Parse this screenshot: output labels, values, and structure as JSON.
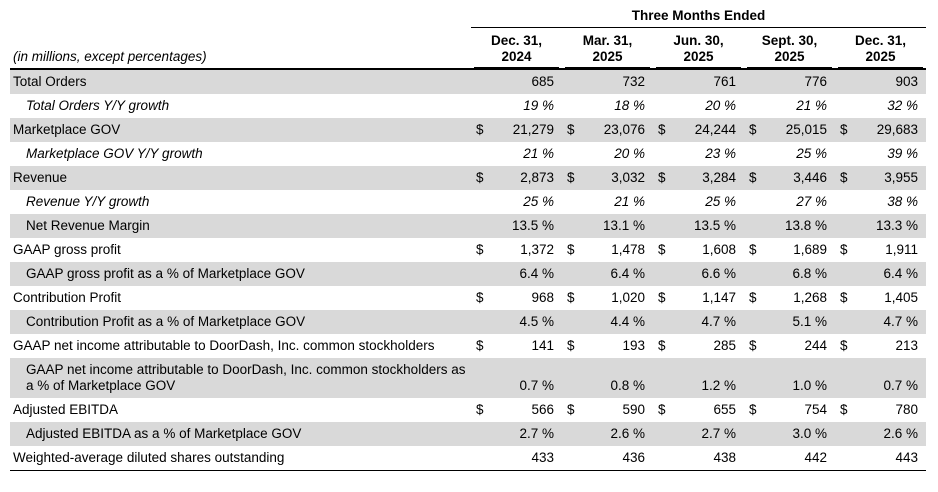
{
  "title": "Three Months Ended",
  "note": "(in millions, except percentages)",
  "columns": [
    [
      "Dec. 31,",
      "2024"
    ],
    [
      "Mar. 31,",
      "2025"
    ],
    [
      "Jun. 30,",
      "2025"
    ],
    [
      "Sept. 30,",
      "2025"
    ],
    [
      "Dec. 31,",
      "2025"
    ]
  ],
  "shading_color": "#d9d9d9",
  "rows": [
    {
      "label": "Total Orders",
      "indent": false,
      "italic": false,
      "shaded": true,
      "dollar": false,
      "percent": false,
      "values": [
        "685",
        "732",
        "761",
        "776",
        "903"
      ]
    },
    {
      "label": "Total Orders Y/Y growth",
      "indent": true,
      "italic": true,
      "shaded": false,
      "dollar": false,
      "percent": true,
      "values": [
        "19",
        "18",
        "20",
        "21",
        "32"
      ]
    },
    {
      "label": "Marketplace GOV",
      "indent": false,
      "italic": false,
      "shaded": true,
      "dollar": true,
      "percent": false,
      "values": [
        "21,279",
        "23,076",
        "24,244",
        "25,015",
        "29,683"
      ]
    },
    {
      "label": "Marketplace GOV Y/Y growth",
      "indent": true,
      "italic": true,
      "shaded": false,
      "dollar": false,
      "percent": true,
      "values": [
        "21",
        "20",
        "23",
        "25",
        "39"
      ]
    },
    {
      "label": "Revenue",
      "indent": false,
      "italic": false,
      "shaded": true,
      "dollar": true,
      "percent": false,
      "values": [
        "2,873",
        "3,032",
        "3,284",
        "3,446",
        "3,955"
      ]
    },
    {
      "label": "Revenue Y/Y growth",
      "indent": true,
      "italic": true,
      "shaded": false,
      "dollar": false,
      "percent": true,
      "values": [
        "25",
        "21",
        "25",
        "27",
        "38"
      ]
    },
    {
      "label": "Net Revenue Margin",
      "indent": true,
      "italic": false,
      "shaded": true,
      "dollar": false,
      "percent": true,
      "values": [
        "13.5",
        "13.1",
        "13.5",
        "13.8",
        "13.3"
      ]
    },
    {
      "label": "GAAP gross profit",
      "indent": false,
      "italic": false,
      "shaded": false,
      "dollar": true,
      "percent": false,
      "values": [
        "1,372",
        "1,478",
        "1,608",
        "1,689",
        "1,911"
      ]
    },
    {
      "label": "GAAP gross profit as a % of Marketplace GOV",
      "indent": true,
      "italic": false,
      "shaded": true,
      "dollar": false,
      "percent": true,
      "values": [
        "6.4",
        "6.4",
        "6.6",
        "6.8",
        "6.4"
      ]
    },
    {
      "label": "Contribution Profit",
      "indent": false,
      "italic": false,
      "shaded": false,
      "dollar": true,
      "percent": false,
      "values": [
        "968",
        "1,020",
        "1,147",
        "1,268",
        "1,405"
      ]
    },
    {
      "label": "Contribution Profit as a % of Marketplace GOV",
      "indent": true,
      "italic": false,
      "shaded": true,
      "dollar": false,
      "percent": true,
      "values": [
        "4.5",
        "4.4",
        "4.7",
        "5.1",
        "4.7"
      ]
    },
    {
      "label": "GAAP net income attributable to DoorDash, Inc. common stockholders",
      "indent": false,
      "italic": false,
      "shaded": false,
      "dollar": true,
      "percent": false,
      "values": [
        "141",
        "193",
        "285",
        "244",
        "213"
      ]
    },
    {
      "label": "GAAP net income attributable to DoorDash, Inc. common stockholders as a % of Marketplace GOV",
      "indent": true,
      "italic": false,
      "shaded": true,
      "dollar": false,
      "percent": true,
      "values": [
        "0.7",
        "0.8",
        "1.2",
        "1.0",
        "0.7"
      ]
    },
    {
      "label": "Adjusted EBITDA",
      "indent": false,
      "italic": false,
      "shaded": false,
      "dollar": true,
      "percent": false,
      "values": [
        "566",
        "590",
        "655",
        "754",
        "780"
      ]
    },
    {
      "label": "Adjusted EBITDA as a % of Marketplace GOV",
      "indent": true,
      "italic": false,
      "shaded": true,
      "dollar": false,
      "percent": true,
      "values": [
        "2.7",
        "2.6",
        "2.7",
        "3.0",
        "2.6"
      ]
    },
    {
      "label": "Weighted-average diluted shares outstanding",
      "indent": false,
      "italic": false,
      "shaded": false,
      "dollar": false,
      "percent": false,
      "values": [
        "433",
        "436",
        "438",
        "442",
        "443"
      ]
    }
  ]
}
